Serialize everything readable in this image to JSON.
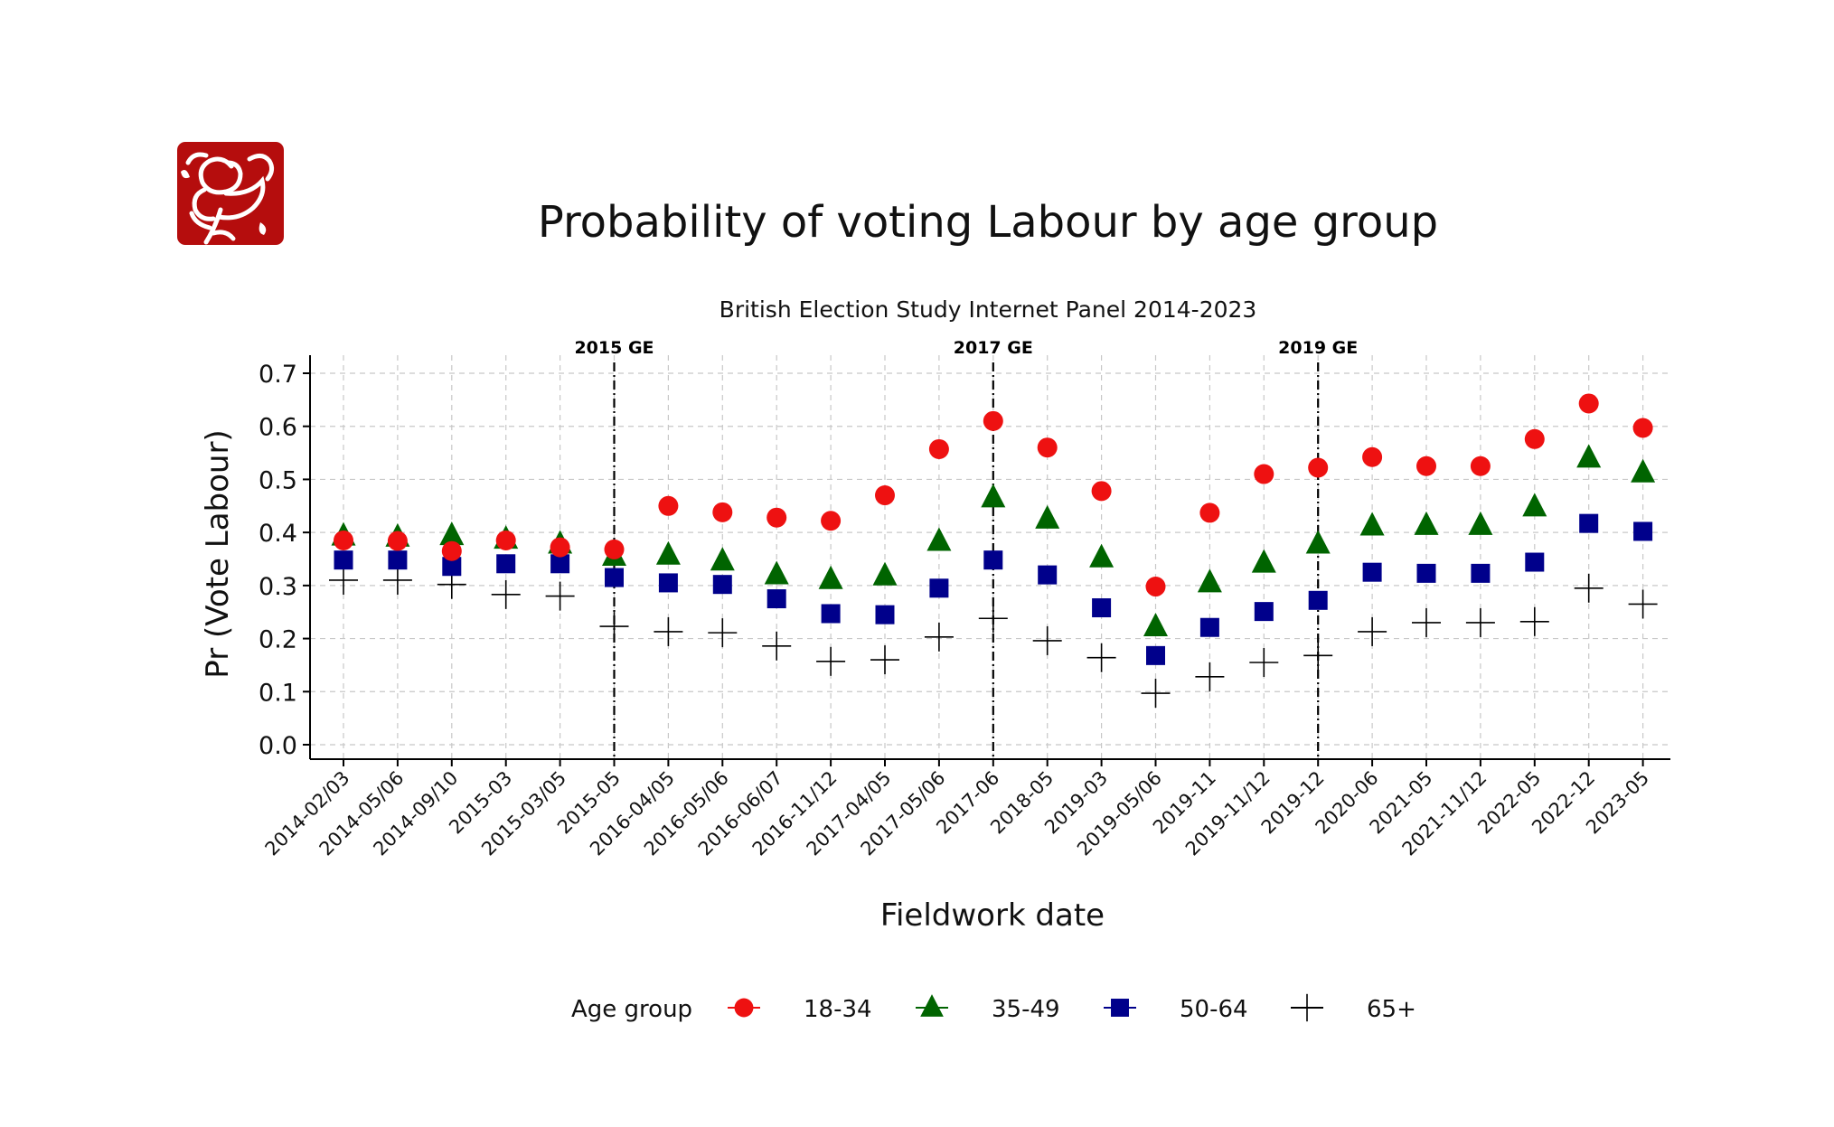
{
  "chart_data": {
    "type": "scatter",
    "title": "Probability of voting Labour by age group",
    "subtitle": "British Election Study Internet Panel 2014-2023",
    "xlabel": "Fieldwork date",
    "ylabel": "Pr (Vote Labour)",
    "ylim": [
      -0.03,
      0.73
    ],
    "yticks": [
      "0.0",
      "0.1",
      "0.2",
      "0.3",
      "0.4",
      "0.5",
      "0.6",
      "0.7"
    ],
    "grid": true,
    "legend_position": "bottom",
    "legend_title": "Age group",
    "categories": [
      "2014-02/03",
      "2014-05/06",
      "2014-09/10",
      "2015-03",
      "2015-03/05",
      "2015-05",
      "2016-04/05",
      "2016-05/06",
      "2016-06/07",
      "2016-11/12",
      "2017-04/05",
      "2017-05/06",
      "2017-06",
      "2018-05",
      "2019-03",
      "2019-05/06",
      "2019-11",
      "2019-11/12",
      "2019-12",
      "2020-06",
      "2021-05",
      "2021-11/12",
      "2022-05",
      "2022-12",
      "2023-05"
    ],
    "reference_lines": [
      {
        "label": "2015 GE",
        "category": "2015-05"
      },
      {
        "label": "2017 GE",
        "category": "2017-06"
      },
      {
        "label": "2019 GE",
        "category": "2019-12"
      }
    ],
    "series": [
      {
        "name": "18-34",
        "marker": "circle",
        "color": "#ee1111",
        "values": [
          0.385,
          0.384,
          0.365,
          0.385,
          0.372,
          0.368,
          0.45,
          0.438,
          0.428,
          0.422,
          0.47,
          0.557,
          0.61,
          0.56,
          0.478,
          0.298,
          0.437,
          0.51,
          0.522,
          0.542,
          0.525,
          0.525,
          0.576,
          0.643,
          0.597
        ]
      },
      {
        "name": "35-49",
        "marker": "triangle",
        "color": "#006400",
        "values": [
          0.393,
          0.391,
          0.394,
          0.387,
          0.378,
          0.355,
          0.357,
          0.346,
          0.32,
          0.311,
          0.318,
          0.383,
          0.465,
          0.425,
          0.352,
          0.222,
          0.305,
          0.342,
          0.378,
          0.412,
          0.413,
          0.413,
          0.448,
          0.54,
          0.512
        ]
      },
      {
        "name": "50-64",
        "marker": "square",
        "color": "#00008b",
        "values": [
          0.348,
          0.348,
          0.336,
          0.341,
          0.341,
          0.315,
          0.305,
          0.302,
          0.275,
          0.247,
          0.245,
          0.295,
          0.348,
          0.32,
          0.258,
          0.168,
          0.221,
          0.251,
          0.272,
          0.325,
          0.323,
          0.323,
          0.344,
          0.417,
          0.402
        ]
      },
      {
        "name": "65+",
        "marker": "plus",
        "color": "#000000",
        "values": [
          0.31,
          0.31,
          0.302,
          0.283,
          0.28,
          0.223,
          0.213,
          0.211,
          0.186,
          0.157,
          0.16,
          0.203,
          0.238,
          0.196,
          0.164,
          0.097,
          0.128,
          0.155,
          0.168,
          0.213,
          0.23,
          0.23,
          0.232,
          0.295,
          0.265
        ]
      }
    ]
  },
  "logo": {
    "icon": "labour-rose-logo",
    "color": "#b50d0d"
  }
}
